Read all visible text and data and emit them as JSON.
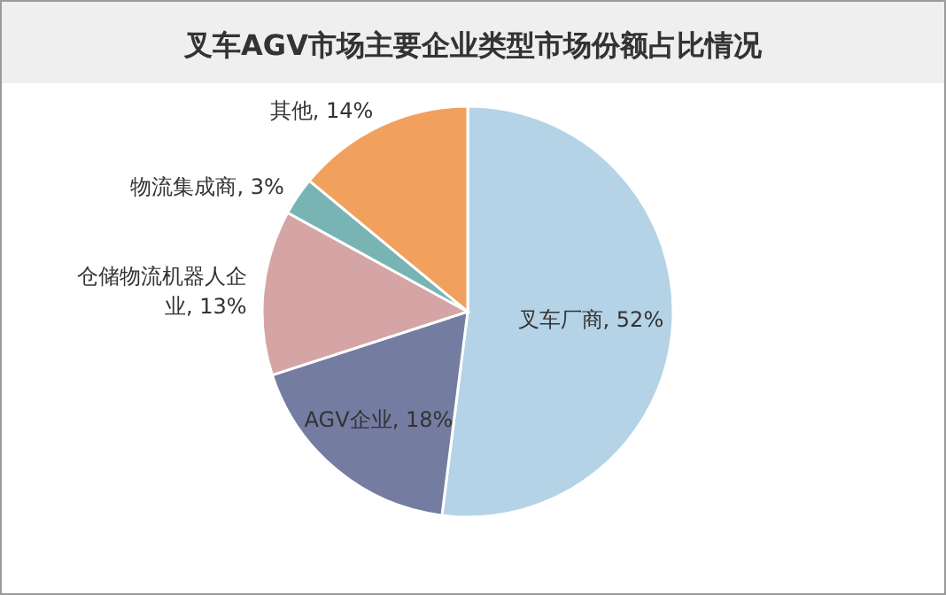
{
  "chart_data": {
    "type": "pie",
    "title": "叉车AGV市场主要企业类型市场份额占比情况",
    "categories": [
      "叉车厂商",
      "AGV企业",
      "仓储物流机器人企业",
      "物流集成商",
      "其他"
    ],
    "values": [
      52,
      18,
      13,
      3,
      14
    ],
    "colors": [
      "#b5d3e6",
      "#747ca2",
      "#d4a5a4",
      "#79b4b5",
      "#f2a05e"
    ],
    "value_labels": [
      ", 52%",
      ", 18%",
      ", 13%",
      ", 3%",
      ", 14%"
    ]
  }
}
